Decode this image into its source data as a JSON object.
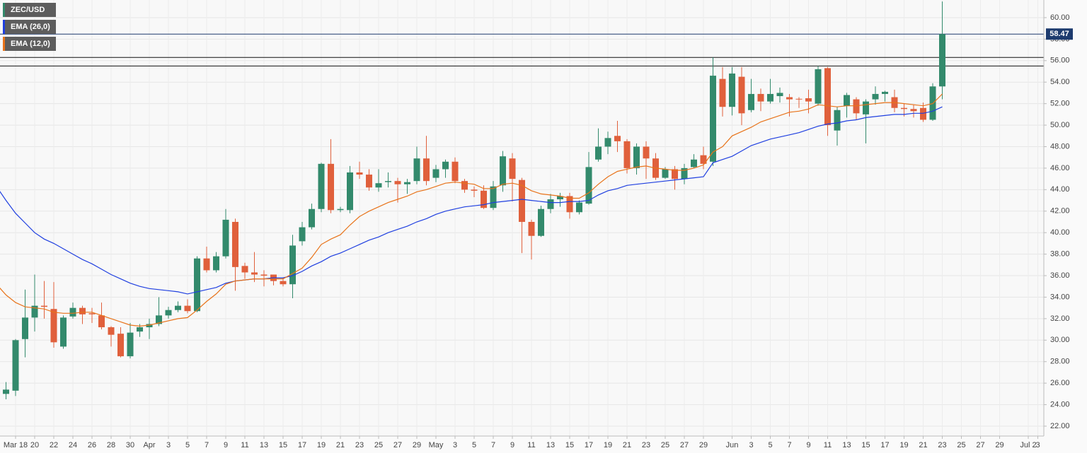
{
  "chart_data": {
    "type": "candlestick",
    "categories": [
      null,
      null,
      "Mar 18",
      null,
      "20",
      null,
      "22",
      null,
      "24",
      null,
      "26",
      null,
      "28",
      null,
      "30",
      null,
      "Apr",
      null,
      "3",
      null,
      "5",
      null,
      "7",
      null,
      "9",
      null,
      "11",
      null,
      "13",
      null,
      "15",
      null,
      "17",
      null,
      "19",
      null,
      "21",
      null,
      "23",
      null,
      "25",
      null,
      "27",
      null,
      "29",
      null,
      "May",
      null,
      "3",
      null,
      "5",
      null,
      "7",
      null,
      "9",
      null,
      "11",
      null,
      "13",
      null,
      "15",
      null,
      "17",
      null,
      "19",
      null,
      "21",
      null,
      "23",
      null,
      "25",
      null,
      "27",
      null,
      "29",
      null,
      null,
      "Jun",
      null,
      "3",
      null,
      "5",
      null,
      "7",
      null,
      "9",
      null,
      "11",
      null,
      "13",
      null,
      "15",
      null,
      "17",
      null,
      "19",
      null,
      "21",
      null,
      "23",
      null,
      "25",
      null,
      "27",
      null,
      "29",
      null,
      null,
      "Jul 2",
      "3"
    ],
    "candles": {
      "name": "ZEC/USD",
      "up_color": "#338a6c",
      "down_color": "#e0603c",
      "open": [
        25.6,
        25.0,
        25.3,
        30.1,
        32.1,
        33.2,
        32.9,
        29.4,
        32.2,
        33.0,
        32.5,
        32.3,
        31.2,
        30.6,
        28.5,
        30.8,
        31.2,
        31.5,
        32.3,
        32.8,
        33.2,
        32.7,
        37.6,
        36.5,
        37.8,
        41.0,
        36.9,
        36.3,
        36.1,
        36.1,
        35.5,
        35.2,
        39.2,
        40.5,
        42.2,
        46.4,
        42.1,
        42.1,
        45.6,
        45.4,
        44.2,
        44.7,
        44.8,
        44.5,
        44.8,
        46.9,
        45.1,
        45.9,
        46.6,
        44.8,
        44.0,
        43.9,
        42.3,
        44.4,
        46.9,
        44.9,
        41.0,
        39.7,
        42.2,
        43.1,
        43.4,
        41.9,
        42.7,
        46.8,
        48.0,
        49.0,
        48.5,
        46.0,
        48.0,
        46.9,
        45.1,
        45.9,
        45.0,
        46.1,
        47.2,
        46.6,
        54.3,
        51.7,
        54.5,
        51.4,
        52.9,
        52.2,
        52.7,
        52.6,
        52.45,
        52.5,
        52.0,
        55.3,
        49.5,
        51.8,
        52.4,
        51.0,
        52.4,
        52.9,
        52.6,
        51.6,
        51.5,
        51.6,
        50.5,
        53.6,
        null,
        null,
        null,
        null,
        null,
        null,
        null,
        null,
        null,
        null
      ],
      "high": [
        26.0,
        26.1,
        30.1,
        34.7,
        36.1,
        35.5,
        35.4,
        32.3,
        33.5,
        33.2,
        33.0,
        33.5,
        31.3,
        31.2,
        31.6,
        31.5,
        32.0,
        34.0,
        33.1,
        33.6,
        33.8,
        37.8,
        38.7,
        38.2,
        42.2,
        41.3,
        37.2,
        38.2,
        36.5,
        36.1,
        35.8,
        39.8,
        41.0,
        42.7,
        46.5,
        48.7,
        42.4,
        46.2,
        46.6,
        45.9,
        45.9,
        45.6,
        45.1,
        45.0,
        48.0,
        49.0,
        46.3,
        46.8,
        47.0,
        45.0,
        44.3,
        44.4,
        44.8,
        47.6,
        47.4,
        45.1,
        41.2,
        42.5,
        43.6,
        43.7,
        43.7,
        43.0,
        47.5,
        49.7,
        49.4,
        50.4,
        48.7,
        48.3,
        48.5,
        47.4,
        46.1,
        46.2,
        46.4,
        47.3,
        48.0,
        56.3,
        55.4,
        55.4,
        55.4,
        54.3,
        53.4,
        54.3,
        53.5,
        52.9,
        52.6,
        53.3,
        55.5,
        55.4,
        51.7,
        53.0,
        52.6,
        52.4,
        53.6,
        53.2,
        53.3,
        52.0,
        51.9,
        52.1,
        53.9,
        61.5,
        null,
        null,
        null,
        null,
        null,
        null,
        null,
        null,
        null,
        null
      ],
      "low": [
        23.2,
        24.5,
        24.8,
        28.4,
        30.8,
        32.0,
        29.3,
        29.2,
        32.0,
        31.5,
        31.6,
        31.0,
        29.4,
        28.4,
        28.3,
        30.3,
        30.1,
        31.3,
        32.0,
        32.6,
        32.5,
        32.6,
        36.3,
        36.3,
        37.6,
        34.6,
        35.7,
        35.4,
        35.0,
        35.1,
        35.0,
        33.9,
        38.8,
        40.3,
        41.9,
        41.8,
        41.9,
        41.8,
        45.0,
        43.9,
        43.8,
        44.2,
        42.8,
        43.6,
        44.5,
        44.4,
        44.7,
        45.1,
        44.6,
        43.7,
        43.3,
        42.2,
        42.1,
        43.8,
        42.9,
        38.1,
        37.5,
        39.6,
        41.8,
        42.4,
        41.3,
        41.7,
        42.6,
        46.6,
        47.3,
        47.5,
        45.5,
        45.4,
        45.0,
        44.9,
        45.0,
        44.0,
        44.5,
        46.0,
        45.9,
        46.2,
        50.8,
        50.9,
        50.0,
        51.2,
        51.3,
        52.0,
        52.1,
        50.8,
        51.6,
        51.1,
        51.8,
        49.0,
        48.1,
        50.7,
        50.5,
        48.3,
        51.9,
        52.2,
        51.2,
        50.8,
        50.7,
        50.3,
        50.4,
        52.4,
        null,
        null,
        null,
        null,
        null,
        null,
        null,
        null,
        null,
        null
      ],
      "close": [
        24.6,
        25.4,
        30.0,
        32.1,
        33.2,
        33.1,
        29.8,
        32.1,
        33.0,
        32.4,
        32.4,
        31.2,
        30.5,
        28.5,
        30.7,
        31.2,
        31.5,
        32.3,
        32.8,
        33.2,
        32.7,
        37.6,
        36.5,
        37.8,
        41.2,
        36.8,
        36.3,
        36.1,
        36.0,
        35.5,
        35.2,
        38.8,
        40.5,
        42.2,
        46.4,
        42.1,
        42.2,
        45.6,
        45.4,
        44.2,
        44.6,
        44.8,
        44.5,
        44.7,
        46.9,
        44.8,
        45.9,
        46.6,
        44.8,
        44.0,
        43.9,
        42.3,
        44.3,
        47.1,
        45.0,
        41.0,
        39.7,
        42.2,
        43.1,
        43.4,
        41.9,
        42.8,
        46.1,
        48.0,
        48.8,
        48.5,
        46.0,
        48.0,
        46.9,
        45.1,
        45.9,
        45.0,
        46.0,
        46.8,
        46.4,
        54.6,
        51.7,
        54.8,
        51.1,
        52.9,
        52.2,
        52.9,
        53.0,
        52.4,
        52.4,
        52.2,
        55.2,
        50.0,
        51.4,
        52.8,
        51.1,
        52.2,
        52.9,
        53.1,
        51.6,
        51.5,
        51.3,
        50.5,
        53.6,
        58.47,
        null,
        null,
        null,
        null,
        null,
        null,
        null,
        null,
        null,
        null
      ]
    },
    "series": [
      {
        "name": "EMA (26,0)",
        "color": "#1f3fe0",
        "values": [
          44.3,
          43.0,
          41.8,
          40.9,
          40.0,
          39.4,
          39.0,
          38.5,
          38.0,
          37.5,
          37.1,
          36.6,
          36.1,
          35.7,
          35.3,
          35.0,
          34.8,
          34.7,
          34.6,
          34.5,
          34.3,
          34.5,
          34.7,
          34.9,
          35.3,
          35.5,
          35.6,
          35.7,
          35.7,
          35.8,
          35.8,
          36.0,
          36.4,
          36.9,
          37.3,
          37.8,
          38.1,
          38.5,
          38.9,
          39.3,
          39.6,
          40.0,
          40.3,
          40.6,
          41.0,
          41.3,
          41.7,
          42.0,
          42.2,
          42.4,
          42.5,
          42.6,
          42.8,
          42.9,
          43.0,
          43.1,
          43.0,
          42.9,
          42.8,
          42.8,
          42.9,
          42.9,
          43.0,
          43.5,
          43.9,
          44.1,
          44.4,
          44.5,
          44.6,
          44.7,
          44.8,
          44.9,
          45.0,
          45.1,
          45.2,
          46.5,
          46.8,
          47.1,
          47.6,
          48.1,
          48.4,
          48.7,
          48.9,
          49.1,
          49.3,
          49.6,
          49.9,
          50.1,
          50.2,
          50.4,
          50.5,
          50.7,
          50.8,
          50.9,
          51.0,
          51.0,
          51.1,
          51.1,
          51.3,
          51.7,
          null,
          null,
          null,
          null,
          null,
          null,
          null,
          null,
          null,
          null
        ]
      },
      {
        "name": "EMA (12,0)",
        "color": "#e8731a",
        "values": [
          35.2,
          34.2,
          33.5,
          33.1,
          33.0,
          32.9,
          32.6,
          32.5,
          32.5,
          32.6,
          32.6,
          32.3,
          32.0,
          31.7,
          31.4,
          31.3,
          31.4,
          31.6,
          31.8,
          32.0,
          32.1,
          32.8,
          33.6,
          34.3,
          35.2,
          35.5,
          35.6,
          35.7,
          35.7,
          35.7,
          35.7,
          36.2,
          36.7,
          37.7,
          38.9,
          39.4,
          39.8,
          40.7,
          41.5,
          42.0,
          42.4,
          42.8,
          43.1,
          43.4,
          43.8,
          44.0,
          44.3,
          44.6,
          44.7,
          44.6,
          44.5,
          44.1,
          44.1,
          44.5,
          44.6,
          44.4,
          43.9,
          43.6,
          43.5,
          43.4,
          43.2,
          43.2,
          43.7,
          44.5,
          45.2,
          45.7,
          45.9,
          46.1,
          46.2,
          46.0,
          45.9,
          45.8,
          45.8,
          46.0,
          46.3,
          47.5,
          48.0,
          49.0,
          49.4,
          49.8,
          50.3,
          50.6,
          50.9,
          51.2,
          51.3,
          51.5,
          51.9,
          51.8,
          51.7,
          51.8,
          51.8,
          51.9,
          52.0,
          52.1,
          52.1,
          52.0,
          51.9,
          51.8,
          52.0,
          52.9,
          null,
          null,
          null,
          null,
          null,
          null,
          null,
          null,
          null,
          null
        ]
      }
    ],
    "levels": [
      56.3,
      55.5
    ],
    "level_color": "#111111",
    "last_price": 58.47,
    "last_price_color": "#1d3b6e",
    "ylim": [
      21.08,
      61.64
    ],
    "yticks": [
      {
        "value": 22,
        "label": "22.00"
      },
      {
        "value": 24,
        "label": "24.00"
      },
      {
        "value": 26,
        "label": "26.00"
      },
      {
        "value": 28,
        "label": "28.00"
      },
      {
        "value": 30,
        "label": "30.00"
      },
      {
        "value": 32,
        "label": "32.00"
      },
      {
        "value": 34,
        "label": "34.00"
      },
      {
        "value": 36,
        "label": "36.00"
      },
      {
        "value": 38,
        "label": "38.00"
      },
      {
        "value": 40,
        "label": "40.00"
      },
      {
        "value": 42,
        "label": "42.00"
      },
      {
        "value": 44,
        "label": "44.00"
      },
      {
        "value": 46,
        "label": "46.00"
      },
      {
        "value": 48,
        "label": "48.00"
      },
      {
        "value": 50,
        "label": "50.00"
      },
      {
        "value": 52,
        "label": "52.00"
      },
      {
        "value": 54,
        "label": "54.00"
      },
      {
        "value": 56,
        "label": "56.00"
      },
      {
        "value": 58,
        "label": "58.00"
      },
      {
        "value": 60,
        "label": "60.00"
      }
    ],
    "grid": true
  }
}
